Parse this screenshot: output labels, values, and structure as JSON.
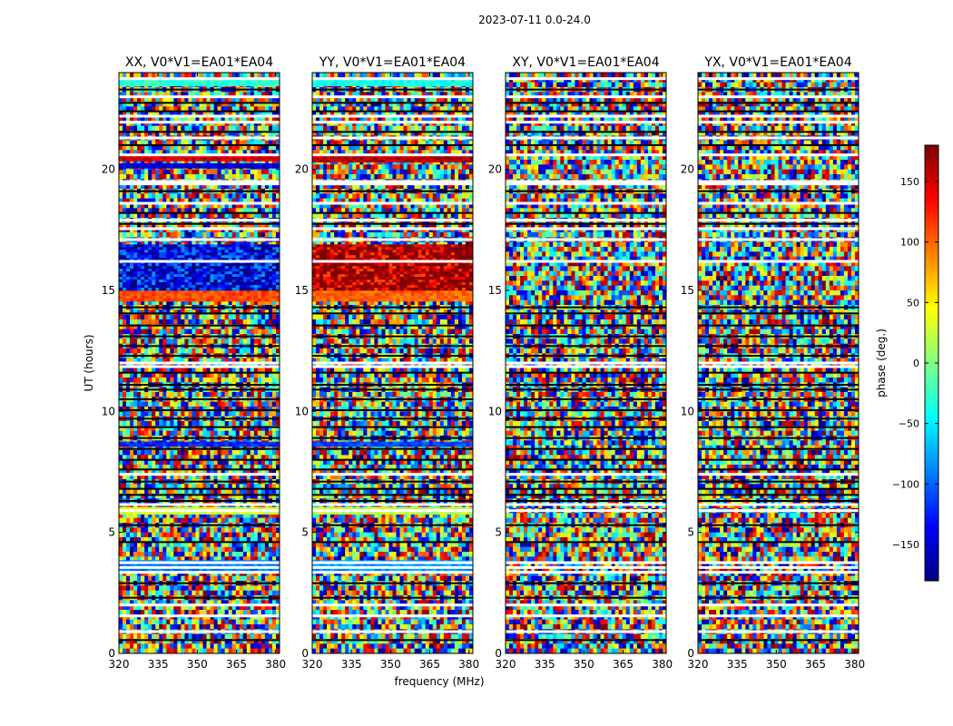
{
  "figure": {
    "suptitle": "2023-07-11 0.0-24.0"
  },
  "chart_data": {
    "type": "heatmap",
    "x_range": [
      320,
      381.5
    ],
    "y_range": [
      0,
      24
    ],
    "xlabel": "frequency (MHz)",
    "ylabel": "UT (hours)",
    "xticks": [
      320,
      335,
      350,
      365,
      380
    ],
    "yticks": [
      0,
      5,
      10,
      15,
      20
    ],
    "panels": [
      {
        "title": "XX, V0*V1=EA01*EA04",
        "pol": "XX",
        "coherent_bands": [
          {
            "t0": 20.35,
            "t1": 20.6,
            "phase": 150
          },
          {
            "t0": 20.05,
            "t1": 20.25,
            "phase": -150
          },
          {
            "t0": 14.55,
            "t1": 15.0,
            "phase": 110
          },
          {
            "t0": 15.0,
            "t1": 16.9,
            "phase": -140
          },
          {
            "t0": 5.75,
            "t1": 6.05,
            "phase": 30
          },
          {
            "t0": 3.4,
            "t1": 3.85,
            "phase": -90
          },
          {
            "t0": 23.45,
            "t1": 23.7,
            "phase": -30
          },
          {
            "t0": 8.55,
            "t1": 8.75,
            "phase": -120
          }
        ]
      },
      {
        "title": "YY, V0*V1=EA01*EA04",
        "pol": "YY",
        "coherent_bands": [
          {
            "t0": 20.3,
            "t1": 20.6,
            "phase": 160
          },
          {
            "t0": 14.55,
            "t1": 15.0,
            "phase": 100
          },
          {
            "t0": 15.0,
            "t1": 16.9,
            "phase": 170
          },
          {
            "t0": 5.75,
            "t1": 6.05,
            "phase": 20
          },
          {
            "t0": 3.4,
            "t1": 3.85,
            "phase": -80
          },
          {
            "t0": 23.45,
            "t1": 23.7,
            "phase": -40
          },
          {
            "t0": 8.55,
            "t1": 8.75,
            "phase": -110
          }
        ]
      },
      {
        "title": "XY, V0*V1=EA01*EA04",
        "pol": "XY",
        "coherent_bands": []
      },
      {
        "title": "YX, V0*V1=EA01*EA04",
        "pol": "YX",
        "coherent_bands": []
      }
    ],
    "flagged_rows_hours": [
      0.9,
      1.55,
      2.0,
      3.35,
      3.55,
      3.75,
      5.9,
      6.15,
      7.4,
      11.85,
      12.0,
      16.2,
      17.1,
      17.55,
      17.9,
      18.6,
      19.4,
      19.5,
      20.6,
      21.3,
      21.95,
      22.2,
      23.0,
      23.75
    ],
    "black_rows_hours": [
      0.55,
      2.3,
      2.9,
      4.6,
      5.3,
      6.3,
      6.55,
      6.8,
      7.1,
      7.6,
      8.0,
      8.45,
      8.9,
      9.35,
      9.7,
      10.05,
      10.5,
      10.9,
      11.1,
      11.6,
      12.3,
      12.7,
      13.1,
      13.55,
      14.05,
      14.3,
      17.75,
      18.2,
      19.1,
      21.0,
      21.55,
      22.4,
      22.75,
      23.3
    ],
    "colorbar": {
      "label": "phase (deg.)",
      "range": [
        -180,
        180
      ],
      "ticks": [
        -150,
        -100,
        -50,
        0,
        50,
        100,
        150
      ],
      "colormap": "jet"
    }
  }
}
